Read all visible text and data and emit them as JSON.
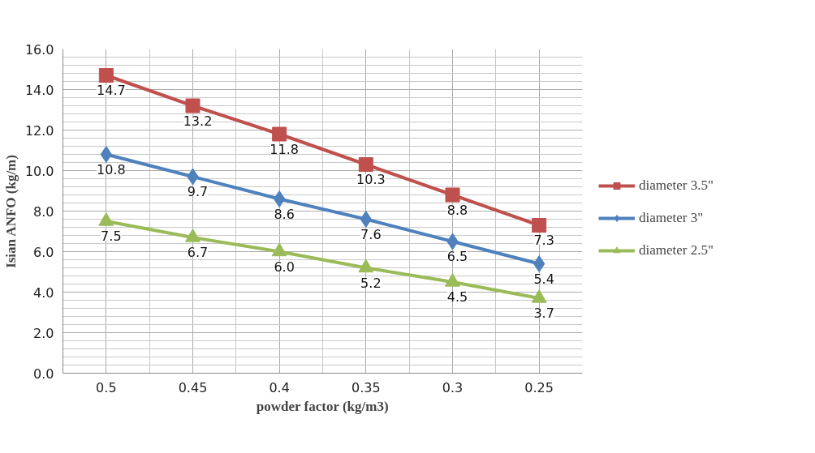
{
  "chart_data": {
    "type": "line",
    "xlabel": "powder factor (kg/m3)",
    "ylabel": "Isian ANFO (kg/m)",
    "categories": [
      "0.5",
      "0.45",
      "0.4",
      "0.35",
      "0.3",
      "0.25"
    ],
    "series": [
      {
        "name": "diameter 3.5\"",
        "color": "#c0504d",
        "marker": "square",
        "values": [
          14.7,
          13.2,
          11.8,
          10.3,
          8.8,
          7.3
        ],
        "value_labels": [
          "14.7",
          "13.2",
          "11.8",
          "10.3",
          "8.8",
          "7.3"
        ]
      },
      {
        "name": "diameter 3\"",
        "color": "#4f81bd",
        "marker": "diamond",
        "values": [
          10.8,
          9.7,
          8.6,
          7.6,
          6.5,
          5.4
        ],
        "value_labels": [
          "10.8",
          "9.7",
          "8.6",
          "7.6",
          "6.5",
          "5.4"
        ]
      },
      {
        "name": "diameter 2.5\"",
        "color": "#9bbb59",
        "marker": "triangle",
        "values": [
          7.5,
          6.7,
          6.0,
          5.2,
          4.5,
          3.7
        ],
        "value_labels": [
          "7.5",
          "6.7",
          "6.0",
          "5.2",
          "4.5",
          "3.7"
        ]
      }
    ],
    "ylim": [
      0,
      16
    ],
    "yticks": [
      {
        "value": 0,
        "label": "0.0"
      },
      {
        "value": 2,
        "label": "2.0"
      },
      {
        "value": 4,
        "label": "4.0"
      },
      {
        "value": 6,
        "label": "6.0"
      },
      {
        "value": 8,
        "label": "8.0"
      },
      {
        "value": 10,
        "label": "10.0"
      },
      {
        "value": 12,
        "label": "12.0"
      },
      {
        "value": 14,
        "label": "14.0"
      },
      {
        "value": 16,
        "label": "16.0"
      }
    ],
    "grid": true,
    "legend": "right",
    "line_style": "solid"
  }
}
